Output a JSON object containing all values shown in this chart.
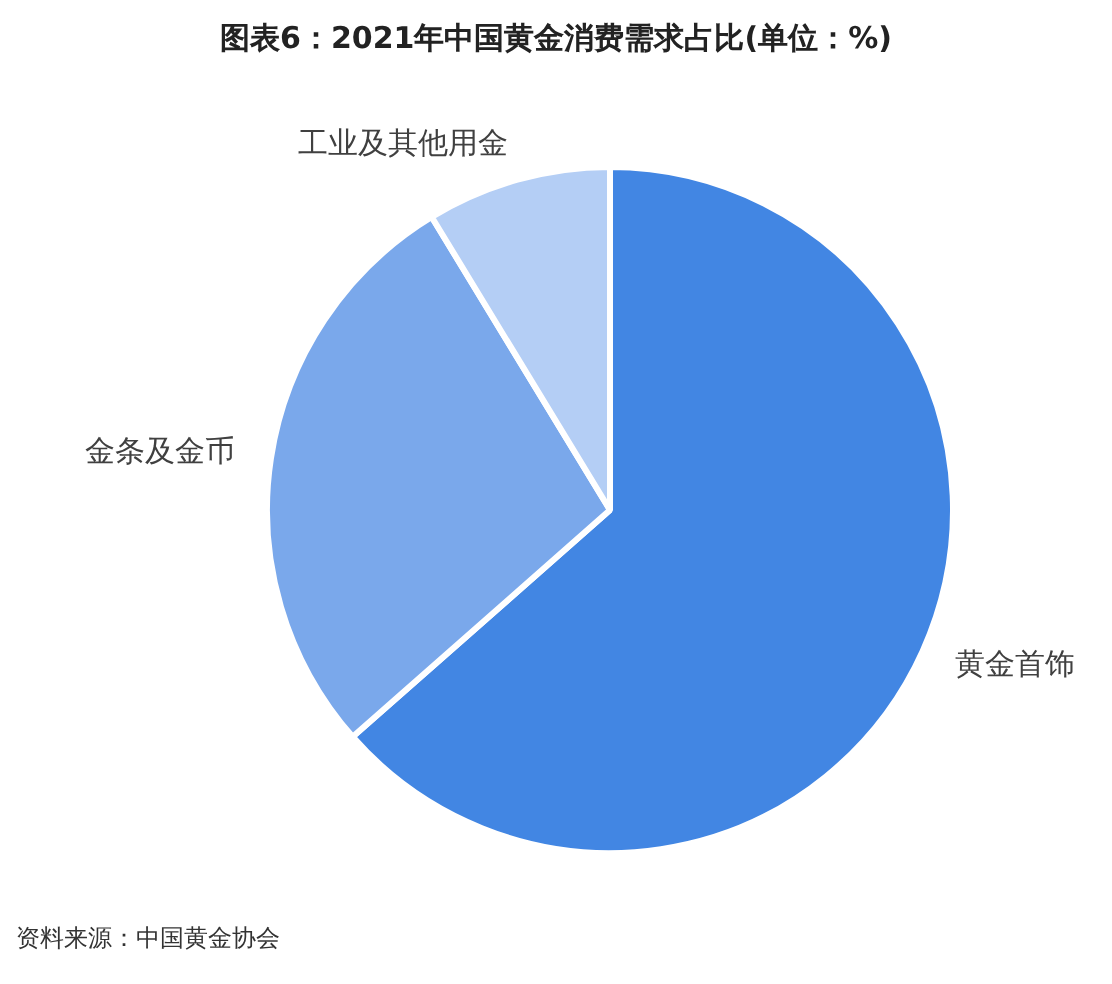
{
  "chart_data": {
    "type": "pie",
    "title": "图表6：2021年中国黄金消费需求占比(单位：%)",
    "categories": [
      "黄金首饰",
      "金条及金币",
      "工业及其他用金"
    ],
    "values": [
      63.5,
      27.8,
      8.7
    ],
    "colors": [
      "#4286e3",
      "#7aa8eb",
      "#b4cef5"
    ],
    "annotations": [
      "资料来源：中国黄金协会"
    ]
  }
}
